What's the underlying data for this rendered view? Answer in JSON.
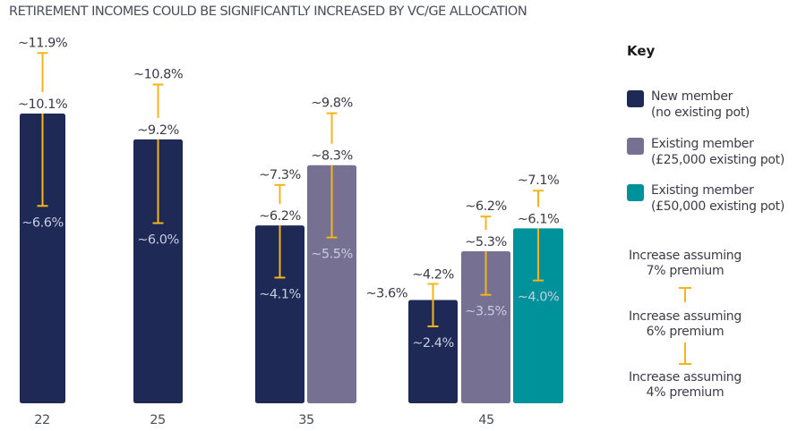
{
  "title": "RETIREMENT INCOMES COULD BE SIGNIFICANTLY INCREASED BY VC/GE ALLOCATION",
  "colors": {
    "new_member": "#1e2a55",
    "existing_25k": "#767092",
    "existing_50k": "#00929a",
    "increase_marker": "#f4b41a"
  },
  "key": {
    "title": "Key",
    "items": [
      {
        "line1": "New member",
        "line2": "(no existing pot)",
        "color": "#1e2a55"
      },
      {
        "line1": "Existing member",
        "line2": "(£25,000 existing pot)",
        "color": "#767092"
      },
      {
        "line1": "Existing member",
        "line2": "(£50,000 existing pot)",
        "color": "#00929a"
      }
    ],
    "increase_labels": [
      {
        "line1": "Increase assuming",
        "line2": "7% premium"
      },
      {
        "line1": "Increase assuming",
        "line2": "6% premium"
      },
      {
        "line1": "Increase assuming",
        "line2": "4% premium"
      }
    ]
  },
  "chart_data": {
    "type": "bar",
    "title": "RETIREMENT INCOMES COULD BE SIGNIFICANTLY INCREASED BY VC/GE ALLOCATION",
    "xlabel": "",
    "ylabel": "",
    "categories": [
      "22",
      "25",
      "35",
      "45"
    ],
    "ylim": [
      0,
      11
    ],
    "grid": false,
    "legend": "right",
    "series": [
      {
        "name": "New member (no existing pot)",
        "color": "#1e2a55",
        "values_6pct": [
          10.1,
          9.2,
          6.2,
          3.6
        ],
        "values_7pct": [
          11.9,
          10.8,
          7.3,
          4.2
        ],
        "values_4pct": [
          6.6,
          6.0,
          4.1,
          2.4
        ]
      },
      {
        "name": "Existing member (£25,000 existing pot)",
        "color": "#767092",
        "values_6pct": [
          null,
          null,
          8.3,
          5.3
        ],
        "values_7pct": [
          null,
          null,
          9.8,
          6.2
        ],
        "values_4pct": [
          null,
          null,
          5.5,
          3.5
        ]
      },
      {
        "name": "Existing member (£50,000 existing pot)",
        "color": "#00929a",
        "values_6pct": [
          null,
          null,
          null,
          6.1
        ],
        "values_7pct": [
          null,
          null,
          null,
          7.1
        ],
        "values_4pct": [
          null,
          null,
          null,
          4.0
        ]
      }
    ],
    "labels": {
      "fmt_prefix": "~",
      "fmt_suffix": "%"
    }
  }
}
